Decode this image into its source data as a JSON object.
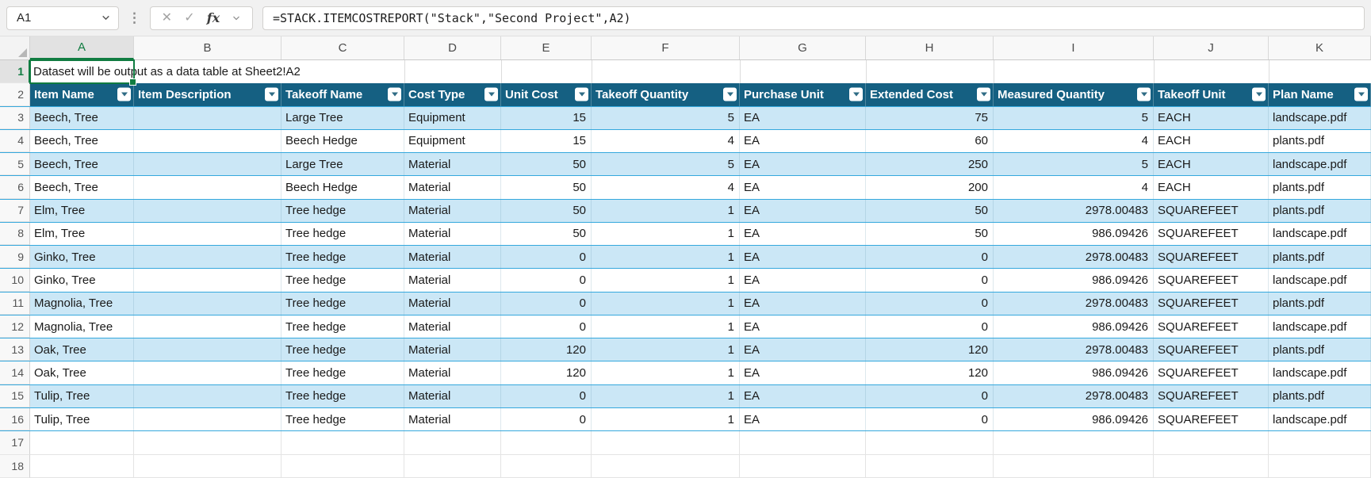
{
  "formula_bar": {
    "name_box_value": "A1",
    "fx_label": "fx",
    "formula": "=STACK.ITEMCOSTREPORT(\"Stack\",\"Second Project\",A2)"
  },
  "colors": {
    "table_header_fill": "#156082",
    "banded_row_fill": "#CBE7F6",
    "table_row_border": "#35A8DD",
    "selection_green": "#107C41",
    "header_text": "#FFFFFF",
    "cell_text": "#1A1A1A"
  },
  "sheet": {
    "selected_cell": "A1",
    "selected_cell_overflow_text": "Dataset will be output as a data table at Sheet2!A2",
    "column_letters": [
      "A",
      "B",
      "C",
      "D",
      "E",
      "F",
      "G",
      "H",
      "I",
      "J",
      "K"
    ],
    "row_numbers": [
      "1",
      "2",
      "3",
      "4",
      "5",
      "6",
      "7",
      "8",
      "9",
      "10",
      "11",
      "12",
      "13",
      "14",
      "15",
      "16",
      "17",
      "18"
    ]
  },
  "table": {
    "headers": [
      "Item Name",
      "Item Description",
      "Takeoff Name",
      "Cost Type",
      "Unit Cost",
      "Takeoff Quantity",
      "Purchase Unit",
      "Extended Cost",
      "Measured Quantity",
      "Takeoff Unit",
      "Plan Name"
    ],
    "rows": [
      [
        "Beech, Tree",
        "",
        "Large Tree",
        "Equipment",
        "15",
        "5",
        "EA",
        "75",
        "5",
        "EACH",
        "landscape.pdf"
      ],
      [
        "Beech, Tree",
        "",
        "Beech Hedge",
        "Equipment",
        "15",
        "4",
        "EA",
        "60",
        "4",
        "EACH",
        "plants.pdf"
      ],
      [
        "Beech, Tree",
        "",
        "Large Tree",
        "Material",
        "50",
        "5",
        "EA",
        "250",
        "5",
        "EACH",
        "landscape.pdf"
      ],
      [
        "Beech, Tree",
        "",
        "Beech Hedge",
        "Material",
        "50",
        "4",
        "EA",
        "200",
        "4",
        "EACH",
        "plants.pdf"
      ],
      [
        "Elm, Tree",
        "",
        "Tree hedge",
        "Material",
        "50",
        "1",
        "EA",
        "50",
        "2978.00483",
        "SQUAREFEET",
        "plants.pdf"
      ],
      [
        "Elm, Tree",
        "",
        "Tree hedge",
        "Material",
        "50",
        "1",
        "EA",
        "50",
        "986.09426",
        "SQUAREFEET",
        "landscape.pdf"
      ],
      [
        "Ginko, Tree",
        "",
        "Tree hedge",
        "Material",
        "0",
        "1",
        "EA",
        "0",
        "2978.00483",
        "SQUAREFEET",
        "plants.pdf"
      ],
      [
        "Ginko, Tree",
        "",
        "Tree hedge",
        "Material",
        "0",
        "1",
        "EA",
        "0",
        "986.09426",
        "SQUAREFEET",
        "landscape.pdf"
      ],
      [
        "Magnolia, Tree",
        "",
        "Tree hedge",
        "Material",
        "0",
        "1",
        "EA",
        "0",
        "2978.00483",
        "SQUAREFEET",
        "plants.pdf"
      ],
      [
        "Magnolia, Tree",
        "",
        "Tree hedge",
        "Material",
        "0",
        "1",
        "EA",
        "0",
        "986.09426",
        "SQUAREFEET",
        "landscape.pdf"
      ],
      [
        "Oak, Tree",
        "",
        "Tree hedge",
        "Material",
        "120",
        "1",
        "EA",
        "120",
        "2978.00483",
        "SQUAREFEET",
        "plants.pdf"
      ],
      [
        "Oak, Tree",
        "",
        "Tree hedge",
        "Material",
        "120",
        "1",
        "EA",
        "120",
        "986.09426",
        "SQUAREFEET",
        "landscape.pdf"
      ],
      [
        "Tulip, Tree",
        "",
        "Tree hedge",
        "Material",
        "0",
        "1",
        "EA",
        "0",
        "2978.00483",
        "SQUAREFEET",
        "plants.pdf"
      ],
      [
        "Tulip, Tree",
        "",
        "Tree hedge",
        "Material",
        "0",
        "1",
        "EA",
        "0",
        "986.09426",
        "SQUAREFEET",
        "landscape.pdf"
      ]
    ]
  }
}
